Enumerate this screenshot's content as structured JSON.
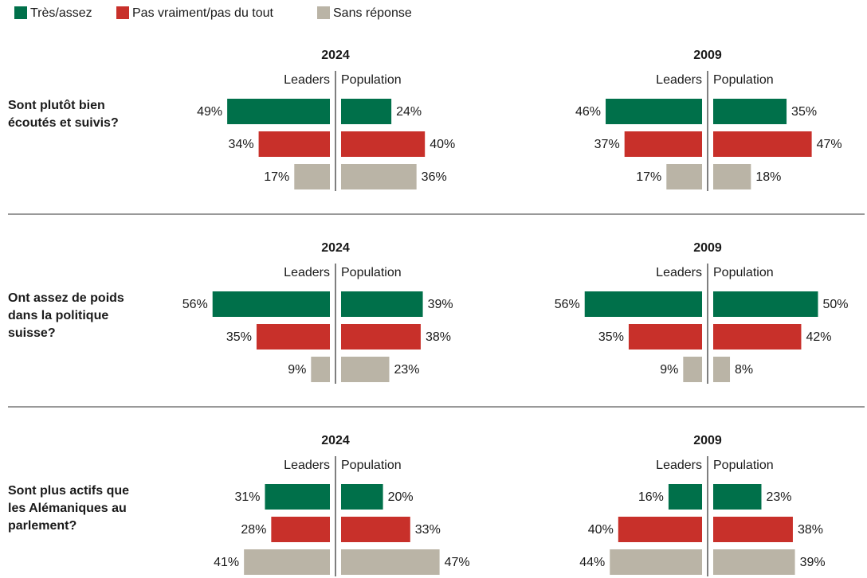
{
  "chart_data": {
    "type": "butterfly",
    "series": [
      {
        "name": "Très/assez",
        "color": "#00704a"
      },
      {
        "name": "Pas vraiment/pas du tout",
        "color": "#c8302a"
      },
      {
        "name": "Sans réponse",
        "color": "#bab4a6"
      }
    ],
    "years": [
      "2024",
      "2009"
    ],
    "sides": [
      "Leaders",
      "Population"
    ],
    "questions": [
      {
        "label": [
          "Sont plutôt bien",
          "écoutés et suivis?"
        ],
        "values": [
          [
            [
              49,
              24
            ],
            [
              34,
              40
            ],
            [
              17,
              36
            ]
          ],
          [
            [
              46,
              35
            ],
            [
              37,
              47
            ],
            [
              17,
              18
            ]
          ]
        ],
        "value_labels": [
          [
            [
              "49%",
              "24%"
            ],
            [
              "34%",
              "40%"
            ],
            [
              "17%",
              "36%"
            ]
          ],
          [
            [
              "46%",
              "35%"
            ],
            [
              "37%",
              "47%"
            ],
            [
              "17%",
              "18%"
            ]
          ]
        ]
      },
      {
        "label": [
          "Ont assez de poids",
          "dans la politique",
          "suisse?"
        ],
        "values": [
          [
            [
              56,
              39
            ],
            [
              35,
              38
            ],
            [
              9,
              23
            ]
          ],
          [
            [
              56,
              50
            ],
            [
              35,
              42
            ],
            [
              9,
              8
            ]
          ]
        ],
        "value_labels": [
          [
            [
              "56%",
              "39%"
            ],
            [
              "35%",
              "38%"
            ],
            [
              "9%",
              "23%"
            ]
          ],
          [
            [
              "56%",
              "50%"
            ],
            [
              "35%",
              "42%"
            ],
            [
              "9%",
              "8%"
            ]
          ]
        ]
      },
      {
        "label": [
          "Sont plus actifs que",
          "les Alémaniques au",
          "parlement?"
        ],
        "values": [
          [
            [
              31,
              20
            ],
            [
              28,
              33
            ],
            [
              41,
              47
            ]
          ],
          [
            [
              16,
              23
            ],
            [
              40,
              38
            ],
            [
              44,
              39
            ]
          ]
        ],
        "value_labels": [
          [
            [
              "31%",
              "20%"
            ],
            [
              "28%",
              "33%"
            ],
            [
              "41%",
              "47%"
            ]
          ],
          [
            [
              "16%",
              "23%"
            ],
            [
              "40%",
              "38%"
            ],
            [
              "44%",
              "39%"
            ]
          ]
        ]
      }
    ]
  }
}
